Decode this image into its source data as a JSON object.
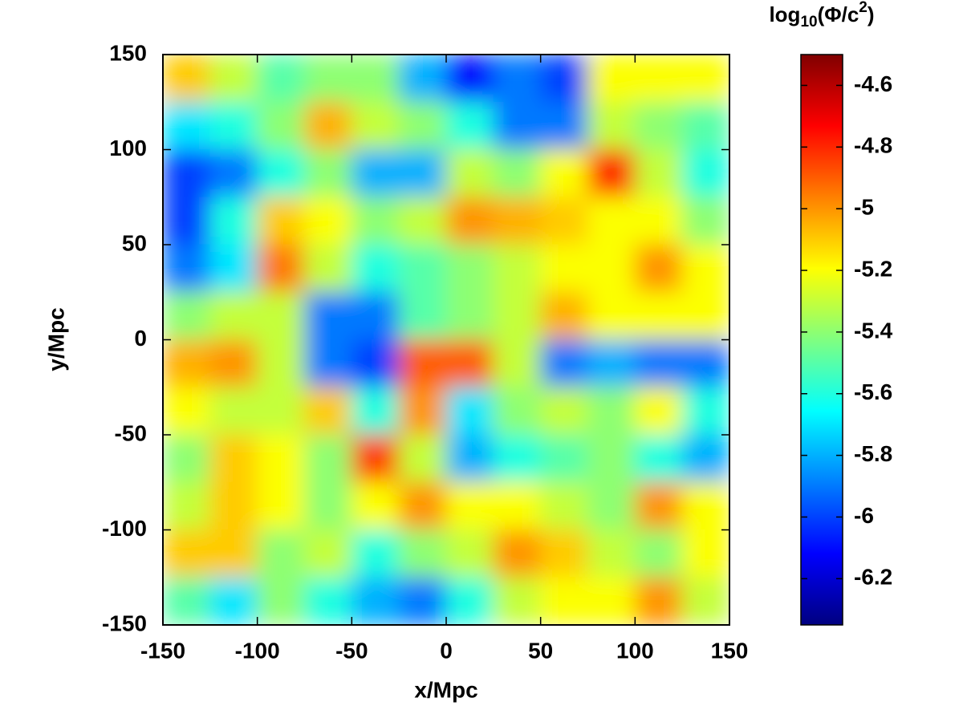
{
  "chart_data": {
    "type": "heatmap",
    "xlabel": "x/Mpc",
    "ylabel": "y/Mpc",
    "colorbar_label": {
      "base": "log",
      "sub": "10",
      "body": "(Φ/c",
      "sup": "2",
      "end": ")"
    },
    "colormap": "jet",
    "xlim": [
      -150,
      150
    ],
    "ylim": [
      -150,
      150
    ],
    "xticks": [
      -150,
      -100,
      -50,
      0,
      50,
      100,
      150
    ],
    "yticks": [
      -150,
      -100,
      -50,
      0,
      50,
      100,
      150
    ],
    "zlim": [
      -6.35,
      -4.5
    ],
    "zticks": [
      -4.6,
      -4.8,
      -5,
      -5.2,
      -5.4,
      -5.6,
      -5.8,
      -6,
      -6.2
    ],
    "x": [
      -137.5,
      -112.5,
      -87.5,
      -62.5,
      -37.5,
      -12.5,
      12.5,
      37.5,
      62.5,
      87.5,
      112.5,
      137.5
    ],
    "y": [
      137.5,
      112.5,
      87.5,
      62.5,
      37.5,
      12.5,
      -12.5,
      -37.5,
      -62.5,
      -87.5,
      -112.5,
      -137.5
    ],
    "z": [
      [
        -5.1,
        -5.3,
        -5.5,
        -5.4,
        -5.4,
        -5.8,
        -6.1,
        -5.9,
        -6.0,
        -5.2,
        -5.2,
        -5.2
      ],
      [
        -5.7,
        -5.6,
        -5.4,
        -5.05,
        -5.3,
        -5.4,
        -5.6,
        -5.9,
        -5.9,
        -5.3,
        -5.4,
        -5.5
      ],
      [
        -6.0,
        -5.9,
        -5.6,
        -5.4,
        -5.8,
        -5.8,
        -5.3,
        -5.4,
        -5.2,
        -4.8,
        -5.3,
        -5.6
      ],
      [
        -6.0,
        -5.6,
        -5.1,
        -5.2,
        -5.4,
        -5.3,
        -5.0,
        -5.05,
        -5.1,
        -5.2,
        -5.2,
        -5.4
      ],
      [
        -5.9,
        -5.7,
        -4.95,
        -5.3,
        -5.6,
        -5.5,
        -5.4,
        -5.3,
        -5.2,
        -5.2,
        -5.0,
        -5.2
      ],
      [
        -5.4,
        -5.3,
        -5.3,
        -5.9,
        -5.9,
        -5.5,
        -5.4,
        -5.3,
        -5.05,
        -5.2,
        -5.2,
        -5.2
      ],
      [
        -5.05,
        -5.0,
        -5.3,
        -5.9,
        -6.0,
        -4.9,
        -4.9,
        -5.3,
        -5.9,
        -5.8,
        -5.9,
        -5.9
      ],
      [
        -5.2,
        -5.3,
        -5.3,
        -5.1,
        -5.6,
        -5.0,
        -5.7,
        -5.4,
        -5.3,
        -5.4,
        -5.2,
        -5.6
      ],
      [
        -5.4,
        -5.1,
        -5.2,
        -5.4,
        -4.85,
        -5.3,
        -5.8,
        -5.6,
        -5.5,
        -5.4,
        -5.6,
        -5.8
      ],
      [
        -5.3,
        -5.1,
        -5.2,
        -5.4,
        -5.2,
        -5.0,
        -5.2,
        -5.2,
        -5.3,
        -5.4,
        -5.0,
        -5.2
      ],
      [
        -5.1,
        -5.1,
        -5.4,
        -5.3,
        -5.6,
        -5.4,
        -5.3,
        -5.0,
        -5.1,
        -5.3,
        -5.4,
        -5.2
      ],
      [
        -5.5,
        -5.7,
        -5.4,
        -5.6,
        -5.8,
        -5.9,
        -5.6,
        -5.3,
        -5.2,
        -5.2,
        -5.0,
        -5.3
      ]
    ]
  }
}
